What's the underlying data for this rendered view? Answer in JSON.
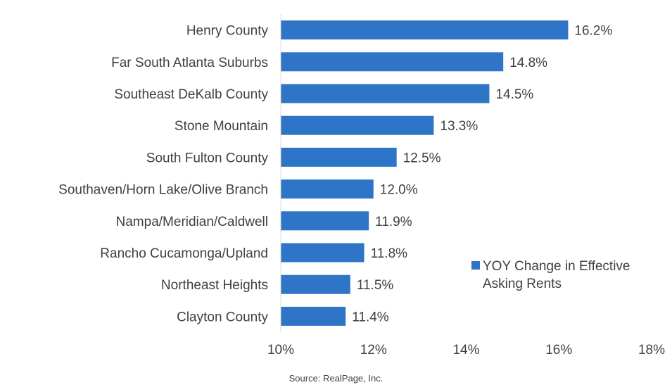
{
  "chart_data": {
    "type": "bar",
    "orientation": "horizontal",
    "categories": [
      "Henry County",
      "Far South Atlanta Suburbs",
      "Southeast DeKalb County",
      "Stone Mountain",
      "South Fulton County",
      "Southaven/Horn Lake/Olive Branch",
      "Nampa/Meridian/Caldwell",
      "Rancho Cucamonga/Upland",
      "Northeast Heights",
      "Clayton County"
    ],
    "series": [
      {
        "name": "YOY Change in Effective Asking Rents",
        "values": [
          16.2,
          14.8,
          14.5,
          13.3,
          12.5,
          12.0,
          11.9,
          11.8,
          11.5,
          11.4
        ],
        "labels": [
          "16.2%",
          "14.8%",
          "14.5%",
          "13.3%",
          "12.5%",
          "12.0%",
          "11.9%",
          "11.8%",
          "11.5%",
          "11.4%"
        ],
        "color": "#2E75C8"
      }
    ],
    "xlim": [
      10,
      18
    ],
    "xticks": [
      10,
      12,
      14,
      16,
      18
    ],
    "xtick_labels": [
      "10%",
      "12%",
      "14%",
      "16%",
      "18%"
    ],
    "grid": false,
    "legend_position": "bottom-right"
  },
  "legend": {
    "line1": "YOY Change in Effective",
    "line2": "Asking Rents"
  },
  "source": "Source: RealPage, Inc."
}
